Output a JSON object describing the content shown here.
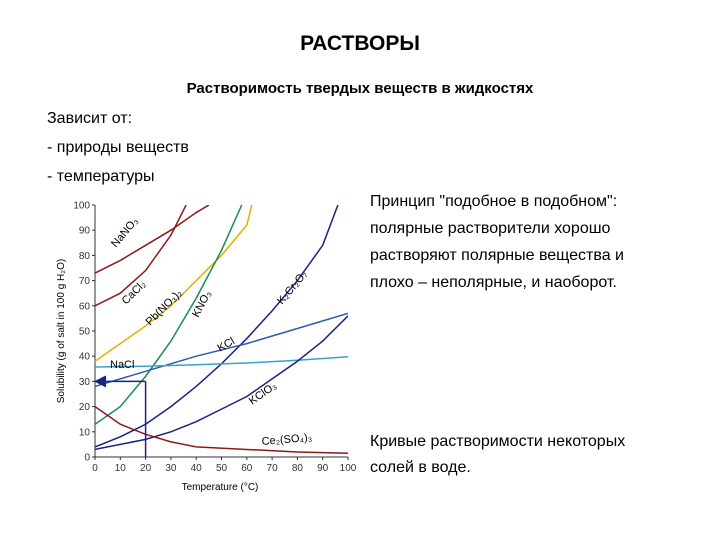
{
  "header": {
    "title": "РАСТВОРЫ",
    "subtitle": "Растворимость твердых веществ в жидкостях"
  },
  "left_text": [
    "Зависит от:",
    "- природы веществ",
    "- температуры"
  ],
  "right_text": [
    "Принцип \"подобное в подобном\":",
    "полярные растворители хорошо",
    "растворяют полярные вещества и",
    "плохо – неполярные, и наоборот."
  ],
  "caption": [
    "Кривые  растворимости некоторых",
    "солей в воде."
  ],
  "chart_data": {
    "type": "line",
    "xlabel": "Temperature (°C)",
    "ylabel": "Solubility (g of salt in 100 g H₂O)",
    "xlim": [
      0,
      100
    ],
    "ylim": [
      0,
      100
    ],
    "xticks": [
      0,
      10,
      20,
      30,
      40,
      50,
      60,
      70,
      80,
      90,
      100
    ],
    "yticks": [
      0,
      10,
      20,
      30,
      40,
      50,
      60,
      70,
      80,
      90,
      100
    ],
    "highlight": {
      "x": 20,
      "y": 30
    },
    "series": [
      {
        "name": "NaNO₃",
        "color": "#8b1a1a",
        "x": [
          0,
          10,
          20,
          30,
          40,
          45
        ],
        "values": [
          73,
          78,
          84,
          90,
          97,
          100
        ]
      },
      {
        "name": "CaCl₂",
        "color": "#8b1a1a",
        "x": [
          0,
          10,
          20,
          30,
          36
        ],
        "values": [
          60,
          65,
          74,
          88,
          100
        ]
      },
      {
        "name": "Pb(NO₃)₂",
        "color": "#e0b000",
        "x": [
          0,
          10,
          20,
          30,
          40,
          50,
          60,
          62
        ],
        "values": [
          38,
          45,
          52,
          60,
          70,
          80,
          92,
          100
        ]
      },
      {
        "name": "KNO₃",
        "color": "#1a8a5a",
        "x": [
          0,
          10,
          20,
          30,
          40,
          50,
          58
        ],
        "values": [
          13,
          20,
          32,
          46,
          63,
          82,
          100
        ]
      },
      {
        "name": "K₂Cr₂O₇",
        "color": "#1a237e",
        "x": [
          0,
          10,
          20,
          30,
          40,
          50,
          60,
          70,
          80,
          90,
          96
        ],
        "values": [
          4,
          8,
          13,
          20,
          28,
          37,
          47,
          58,
          70,
          84,
          100
        ]
      },
      {
        "name": "KCl",
        "color": "#2a5db0",
        "x": [
          0,
          20,
          40,
          60,
          80,
          100
        ],
        "values": [
          28,
          34,
          40,
          45,
          51,
          57
        ]
      },
      {
        "name": "NaCl",
        "color": "#3aa0d0",
        "x": [
          0,
          20,
          40,
          60,
          80,
          100
        ],
        "values": [
          35.7,
          36,
          36.6,
          37.3,
          38.4,
          39.8
        ]
      },
      {
        "name": "KClO₃",
        "color": "#1a237e",
        "x": [
          0,
          10,
          20,
          30,
          40,
          50,
          60,
          70,
          80,
          90,
          100
        ],
        "values": [
          3,
          5,
          7,
          10,
          14,
          19,
          24,
          31,
          38,
          46,
          56
        ]
      },
      {
        "name": "Ce₂(SO₄)₃",
        "color": "#8b1a1a",
        "x": [
          0,
          10,
          20,
          30,
          40,
          60,
          80,
          100
        ],
        "values": [
          20,
          13,
          9,
          6,
          4,
          3,
          2,
          1.5
        ]
      }
    ]
  }
}
